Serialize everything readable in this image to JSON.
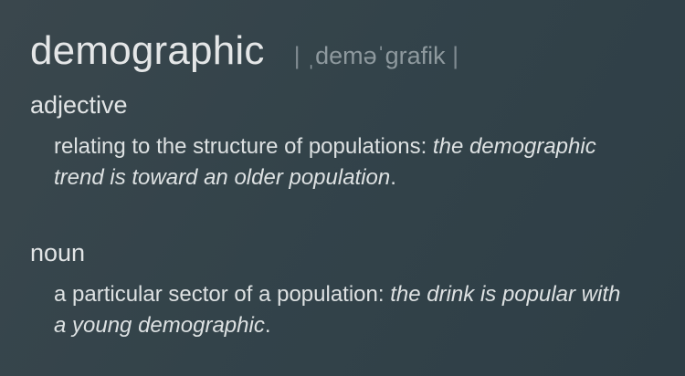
{
  "entry": {
    "headword": "demographic",
    "pronunciation": "ˌdeməˈɡrafik",
    "pron_bar": "|"
  },
  "senses": [
    {
      "pos": "adjective",
      "definition": "relating to the structure of populations:",
      "example": "the demographic trend is toward an older population",
      "end": "."
    },
    {
      "pos": "noun",
      "definition": "a particular sector of a population:",
      "example": "the drink is popular with a young demographic",
      "end": "."
    }
  ],
  "colors": {
    "background": "#33434a",
    "text": "#e4e6e7",
    "pronunciation": "#8e999e"
  }
}
